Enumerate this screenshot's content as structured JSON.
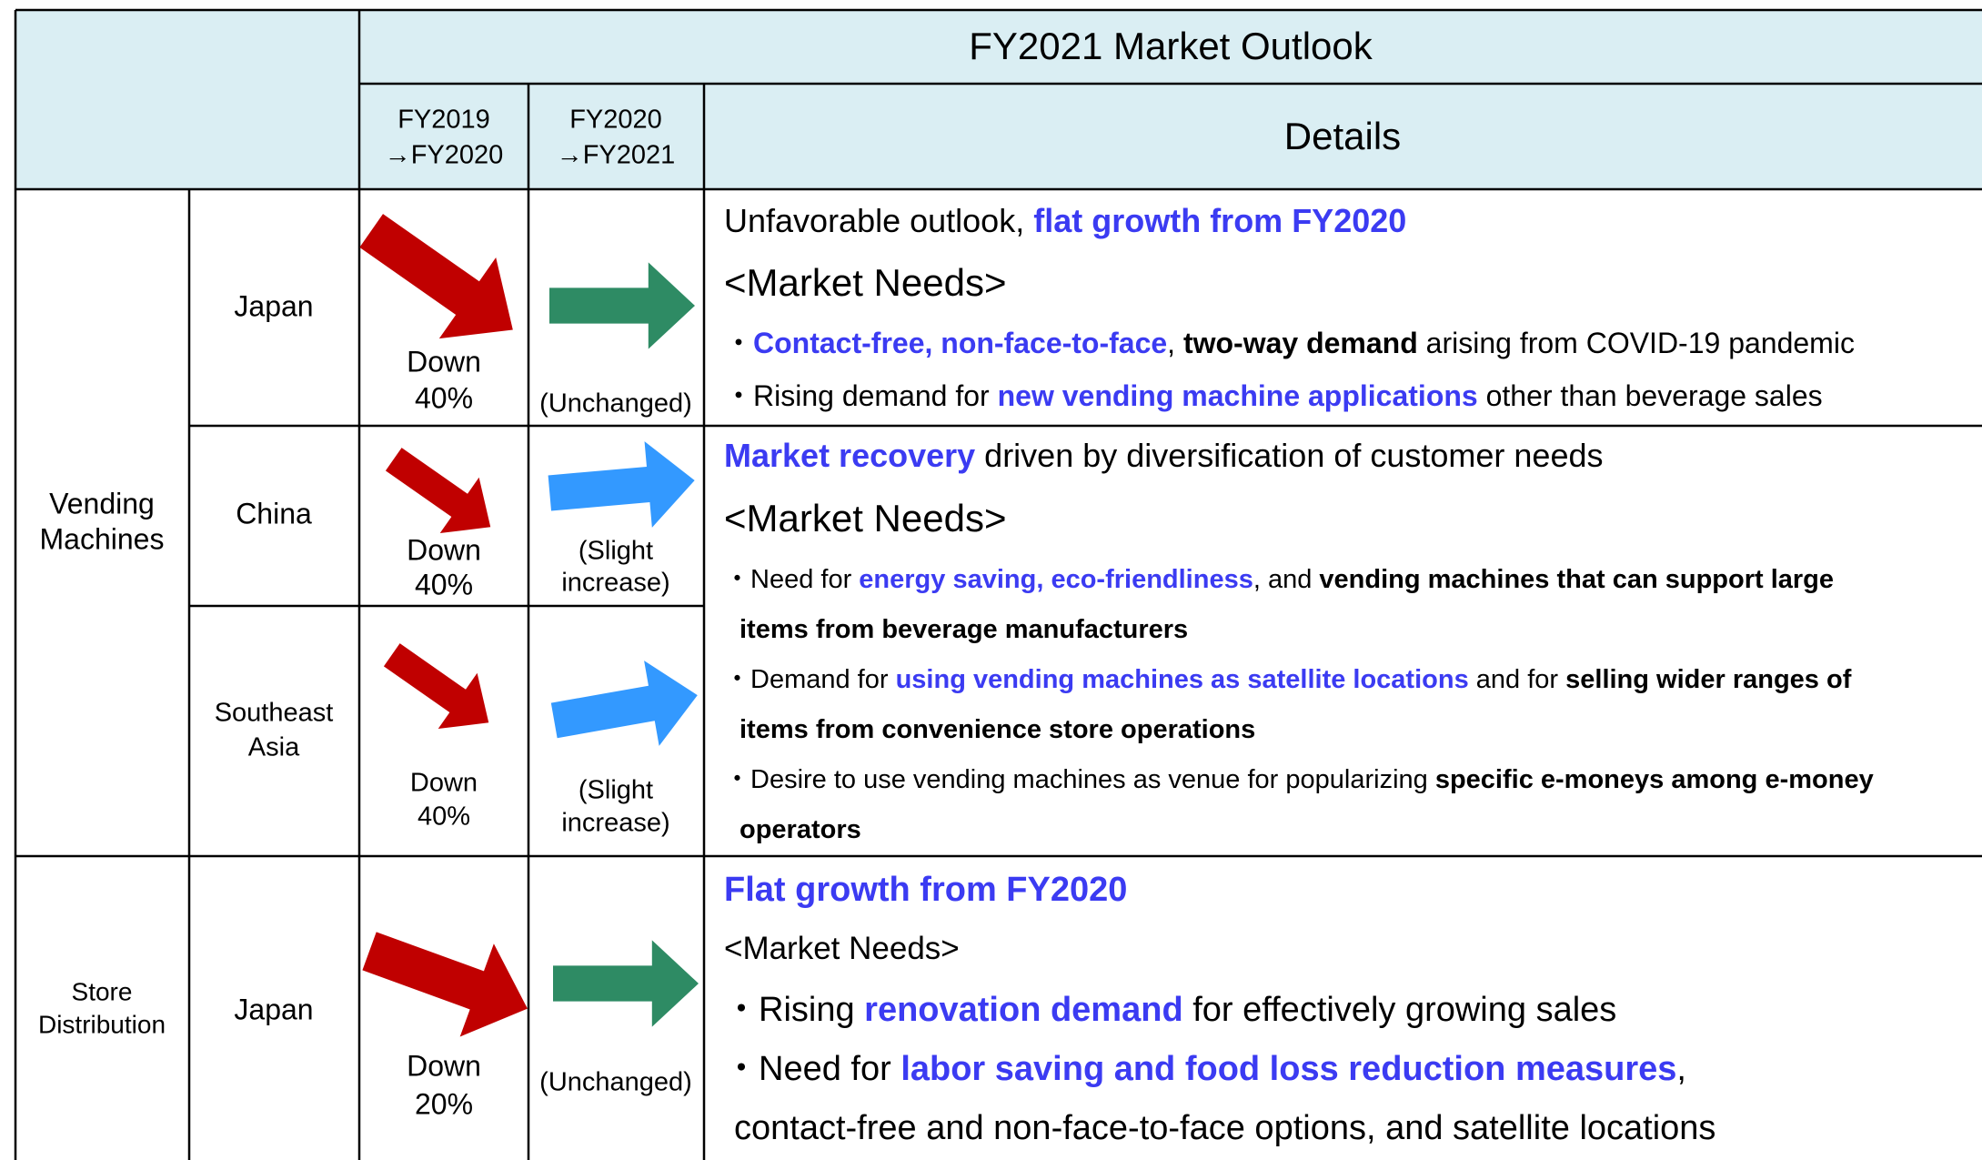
{
  "header": {
    "title": "FY2021 Market Outlook",
    "columns": [
      [
        "FY2019",
        "→FY2020"
      ],
      [
        "FY2020",
        "→FY2021"
      ],
      [
        "Details"
      ]
    ]
  },
  "groups": [
    {
      "label": [
        "Vending",
        "Machines"
      ],
      "regions": [
        {
          "name": [
            "Japan"
          ],
          "change_2020": [
            "Down",
            "40%"
          ],
          "change_2021": [
            "(Unchanged)"
          ]
        },
        {
          "name": [
            "China"
          ],
          "change_2020": [
            "Down",
            "40%"
          ],
          "change_2021": [
            "(Slight",
            "increase)"
          ]
        },
        {
          "name": [
            "Southeast",
            "Asia"
          ],
          "change_2020": [
            "Down",
            "40%"
          ],
          "change_2021": [
            "(Slight",
            "increase)"
          ]
        }
      ]
    },
    {
      "label": [
        "Store",
        "Distribution"
      ],
      "regions": [
        {
          "name": [
            "Japan"
          ],
          "change_2020": [
            "Down",
            "20%"
          ],
          "change_2021": [
            "(Unchanged)"
          ]
        }
      ]
    }
  ],
  "details": [
    {
      "lines": [
        [
          {
            "text": "Unfavorable outlook, "
          },
          {
            "text": "flat growth from FY2020",
            "style": "blue"
          }
        ],
        [
          {
            "text": "<Market Needs>"
          }
        ],
        [
          {
            "text": "・"
          },
          {
            "text": "Contact-free, non-face-to-face",
            "style": "blue"
          },
          {
            "text": ", "
          },
          {
            "text": "two-way demand",
            "style": "bold"
          },
          {
            "text": " arising from COVID-19 pandemic"
          }
        ],
        [
          {
            "text": "・Rising demand for "
          },
          {
            "text": "new vending machine applications",
            "style": "blue"
          },
          {
            "text": " other than beverage sales"
          }
        ]
      ]
    },
    {
      "lines": [
        [
          {
            "text": "Market recovery",
            "style": "blue"
          },
          {
            "text": " driven by diversification of customer needs"
          }
        ],
        [
          {
            "text": "<Market Needs>"
          }
        ],
        [
          {
            "text": "・Need for "
          },
          {
            "text": "energy saving, eco-friendliness",
            "style": "blue"
          },
          {
            "text": ", and "
          },
          {
            "text": "vending machines that can support large",
            "style": "bold"
          }
        ],
        [
          {
            "text": "items from beverage manufacturers",
            "style": "bold"
          }
        ],
        [
          {
            "text": "・Demand for "
          },
          {
            "text": "using vending machines as satellite locations",
            "style": "blue"
          },
          {
            "text": " and for "
          },
          {
            "text": "selling wider ranges of",
            "style": "bold"
          }
        ],
        [
          {
            "text": "items from convenience store operations",
            "style": "bold"
          }
        ],
        [
          {
            "text": "・Desire to use vending machines as venue for popularizing "
          },
          {
            "text": "specific e-moneys among e-money",
            "style": "bold"
          }
        ],
        [
          {
            "text": "operators",
            "style": "bold"
          }
        ]
      ]
    },
    {
      "lines": [
        [
          {
            "text": "Flat growth from FY2020",
            "style": "blue"
          }
        ],
        [
          {
            "text": "<Market Needs>"
          }
        ],
        [
          {
            "text": "・Rising "
          },
          {
            "text": "renovation demand",
            "style": "blue"
          },
          {
            "text": " for effectively growing sales"
          }
        ],
        [
          {
            "text": "・Need for "
          },
          {
            "text": "labor saving and food loss reduction measures",
            "style": "blue"
          },
          {
            "text": ","
          }
        ],
        [
          {
            "text": "contact-free and non-face-to-face options, and satellite locations"
          }
        ]
      ]
    }
  ]
}
